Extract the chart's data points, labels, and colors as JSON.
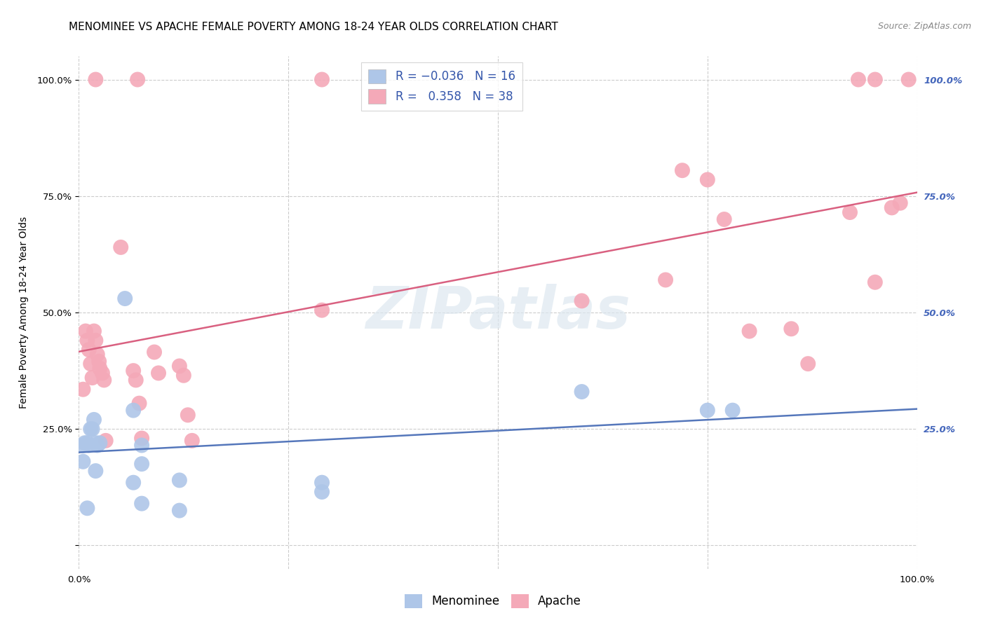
{
  "title": "MENOMINEE VS APACHE FEMALE POVERTY AMONG 18-24 YEAR OLDS CORRELATION CHART",
  "source": "Source: ZipAtlas.com",
  "ylabel": "Female Poverty Among 18-24 Year Olds",
  "xlim": [
    0,
    1
  ],
  "ylim": [
    -0.05,
    1.05
  ],
  "menominee_color": "#aec6e8",
  "apache_color": "#f4a9b8",
  "menominee_edge": "#7aaad0",
  "apache_edge": "#e07898",
  "menominee_label": "Menominee",
  "apache_label": "Apache",
  "R_menominee": -0.036,
  "N_menominee": 16,
  "R_apache": 0.358,
  "N_apache": 38,
  "menominee_x": [
    0.005,
    0.007,
    0.01,
    0.012,
    0.014,
    0.016,
    0.018,
    0.02,
    0.022,
    0.025,
    0.055,
    0.065,
    0.075,
    0.6,
    0.75,
    0.78
  ],
  "menominee_y": [
    0.215,
    0.22,
    0.22,
    0.215,
    0.25,
    0.25,
    0.27,
    0.22,
    0.215,
    0.22,
    0.53,
    0.29,
    0.215,
    0.33,
    0.29,
    0.29
  ],
  "menominee_low_x": [
    0.005,
    0.01,
    0.02,
    0.065,
    0.075,
    0.075,
    0.12,
    0.12,
    0.29,
    0.29
  ],
  "menominee_low_y": [
    0.18,
    0.08,
    0.16,
    0.135,
    0.175,
    0.09,
    0.075,
    0.14,
    0.135,
    0.115
  ],
  "apache_x": [
    0.005,
    0.008,
    0.01,
    0.012,
    0.014,
    0.016,
    0.018,
    0.02,
    0.022,
    0.024,
    0.025,
    0.028,
    0.03,
    0.032,
    0.05,
    0.065,
    0.068,
    0.072,
    0.075,
    0.09,
    0.095,
    0.12,
    0.125,
    0.13,
    0.135,
    0.29,
    0.6,
    0.7,
    0.72,
    0.75,
    0.77,
    0.8,
    0.85,
    0.87,
    0.92,
    0.95,
    0.97,
    0.98
  ],
  "apache_y": [
    0.335,
    0.46,
    0.44,
    0.42,
    0.39,
    0.36,
    0.46,
    0.44,
    0.41,
    0.395,
    0.38,
    0.37,
    0.355,
    0.225,
    0.64,
    0.375,
    0.355,
    0.305,
    0.23,
    0.415,
    0.37,
    0.385,
    0.365,
    0.28,
    0.225,
    0.505,
    0.525,
    0.57,
    0.805,
    0.785,
    0.7,
    0.46,
    0.465,
    0.39,
    0.715,
    0.565,
    0.725,
    0.735
  ],
  "apache_100_x": [
    0.02,
    0.07,
    0.29,
    0.93,
    0.95,
    0.99
  ],
  "apache_100_y": [
    1.0,
    1.0,
    1.0,
    1.0,
    1.0,
    1.0
  ],
  "background_color": "#ffffff",
  "grid_color": "#cccccc",
  "line_menominee_color": "#5577bb",
  "line_apache_color": "#d96080",
  "watermark": "ZIPatlas",
  "watermark_color": "#dde8f0",
  "title_fontsize": 11,
  "label_fontsize": 10,
  "tick_fontsize": 9.5,
  "legend_fontsize": 12,
  "right_tick_color": "#4466bb"
}
